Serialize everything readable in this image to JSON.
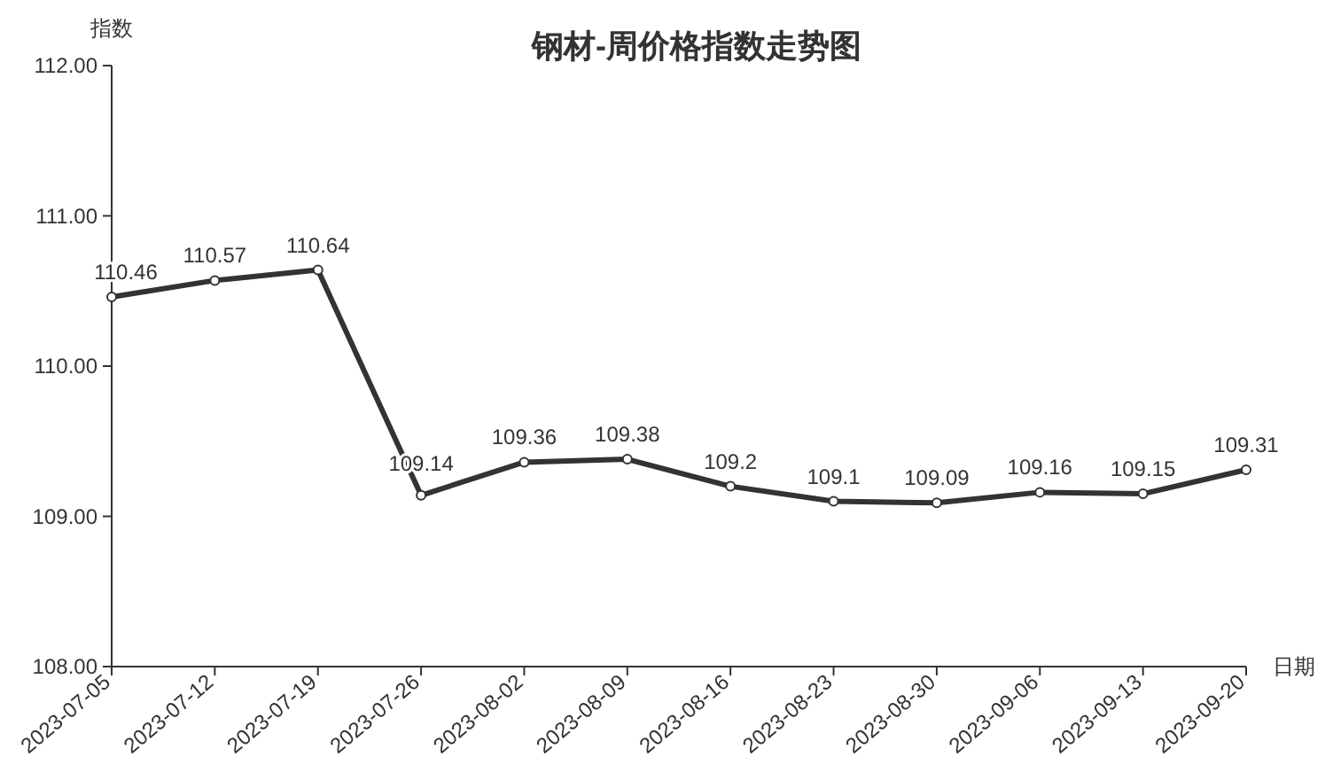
{
  "chart_data": {
    "type": "line",
    "title": "钢材-周价格指数走势图",
    "ylabel": "指数",
    "xlabel": "日期",
    "categories": [
      "2023-07-05",
      "2023-07-12",
      "2023-07-19",
      "2023-07-26",
      "2023-08-02",
      "2023-08-09",
      "2023-08-16",
      "2023-08-23",
      "2023-08-30",
      "2023-09-06",
      "2023-09-13",
      "2023-09-20"
    ],
    "series": [
      {
        "color": "#333333",
        "values": [
          110.46,
          110.57,
          110.64,
          109.14,
          109.36,
          109.38,
          109.2,
          109.1,
          109.09,
          109.16,
          109.15,
          109.31
        ]
      }
    ],
    "ylim": [
      108,
      112
    ],
    "yticks": [
      {
        "value": 108,
        "label": "108.00"
      },
      {
        "value": 109,
        "label": "109.00"
      },
      {
        "value": 110,
        "label": "110.00"
      },
      {
        "value": 111,
        "label": "111.00"
      },
      {
        "value": 112,
        "label": "112.00"
      }
    ],
    "marker": "circle",
    "line_style": "solid",
    "grid": false,
    "data_labels": true
  }
}
